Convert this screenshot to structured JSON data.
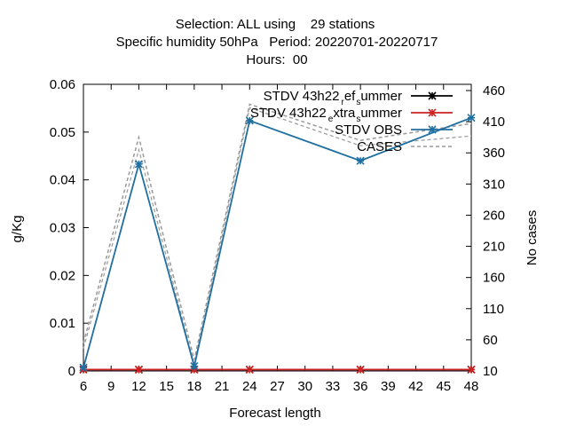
{
  "chart_data": {
    "type": "line",
    "title": [
      "Selection: ALL using    29 stations",
      "Specific humidity 50hPa   Period: 20220701-20220717",
      "Hours:  00"
    ],
    "xlabel": "Forecast length",
    "ylabel": "g/Kg",
    "y2label": "No cases",
    "xlim": [
      6,
      48
    ],
    "ylim": [
      0,
      0.06
    ],
    "y2lim": [
      10,
      470
    ],
    "x_ticks": [
      6,
      9,
      12,
      15,
      18,
      21,
      24,
      27,
      30,
      33,
      36,
      39,
      42,
      45,
      48
    ],
    "y_ticks": [
      0,
      0.01,
      0.02,
      0.03,
      0.04,
      0.05,
      0.06
    ],
    "y_tick_labels": [
      "0",
      "0.01",
      "0.02",
      "0.03",
      "0.04",
      "0.05",
      "0.06"
    ],
    "y2_ticks": [
      10,
      60,
      110,
      160,
      210,
      260,
      310,
      360,
      410,
      460
    ],
    "grid": false,
    "legend_position": "top-right",
    "x": [
      6,
      12,
      18,
      24,
      36,
      48
    ],
    "series": [
      {
        "name": "STDV 43h22_ref_summer",
        "legend_base": "STDV 43h22",
        "legend_sub1": "r",
        "legend_mid": "ef",
        "legend_sub2": "s",
        "legend_tail": "ummer",
        "color": "#000000",
        "marker": "star",
        "values": [
          0.0003,
          0.0003,
          0.0003,
          0.0003,
          0.0003,
          0.0003
        ]
      },
      {
        "name": "STDV 43h22_extra_summer",
        "legend_base": "STDV 43h22",
        "legend_sub1": "e",
        "legend_mid": "xtra",
        "legend_sub2": "s",
        "legend_tail": "ummer",
        "color": "#cc2222",
        "marker": "star",
        "values": [
          0.0003,
          0.0003,
          0.0003,
          0.0003,
          0.0003,
          0.0003
        ]
      },
      {
        "name": "STDV OBS",
        "color": "#1f6fa0",
        "marker": "star",
        "values": [
          0.0007,
          0.0433,
          0.001,
          0.0524,
          0.044,
          0.053
        ]
      },
      {
        "name": "CASES",
        "color": "#999999",
        "dashed": true,
        "axis": "y2",
        "values": [
          55,
          385,
          28,
          438,
          380,
          407
        ]
      }
    ]
  }
}
